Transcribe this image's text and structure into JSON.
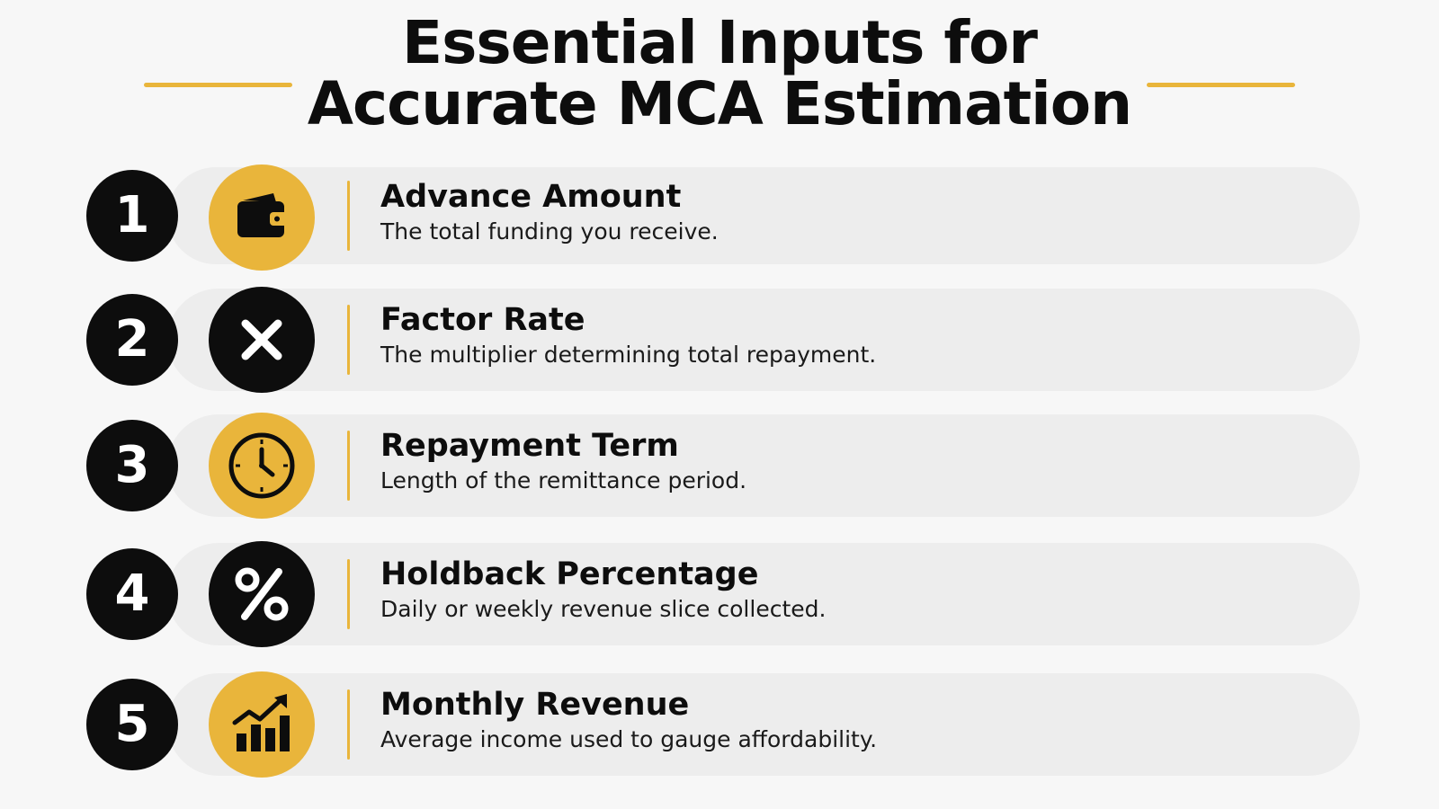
{
  "title": {
    "line1": "Essential Inputs for",
    "line2": "Accurate MCA Estimation"
  },
  "colors": {
    "accent": "#e9b53b",
    "dark": "#0d0d0d",
    "pill": "#ededed",
    "background": "#f7f7f7"
  },
  "items": [
    {
      "number": "1",
      "icon": "wallet-icon",
      "icon_style": "gold",
      "heading": "Advance Amount",
      "description": "The total funding you receive."
    },
    {
      "number": "2",
      "icon": "multiply-icon",
      "icon_style": "dark",
      "heading": "Factor Rate",
      "description": "The multiplier determining total repayment."
    },
    {
      "number": "3",
      "icon": "clock-icon",
      "icon_style": "gold",
      "heading": "Repayment Term",
      "description": "Length of the remittance period."
    },
    {
      "number": "4",
      "icon": "percent-icon",
      "icon_style": "dark",
      "heading": "Holdback Percentage",
      "description": "Daily or weekly revenue slice collected."
    },
    {
      "number": "5",
      "icon": "growth-chart-icon",
      "icon_style": "gold",
      "heading": "Monthly Revenue",
      "description": "Average income used to gauge affordability."
    }
  ]
}
